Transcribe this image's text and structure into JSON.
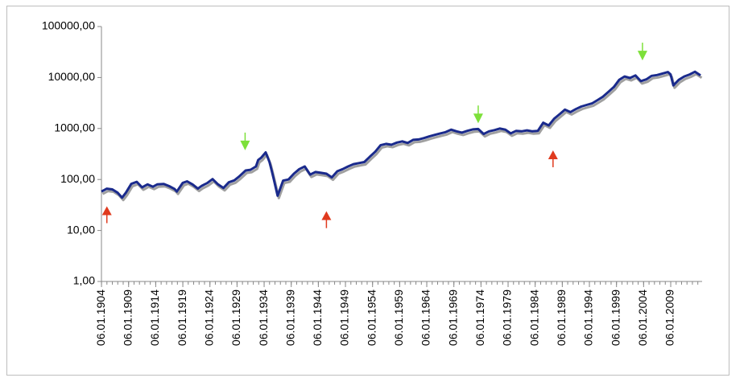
{
  "chart_data": {
    "type": "line",
    "title": "",
    "xlabel": "",
    "ylabel": "",
    "y_scale": "log",
    "ylim": [
      1,
      100000
    ],
    "xlim": [
      "06.01.1904",
      "2014"
    ],
    "grid": false,
    "y_tick_labels": [
      "1,00",
      "10,00",
      "100,00",
      "1000,00",
      "10000,00",
      "100000,00"
    ],
    "x_tick_labels": [
      "06.01.1904",
      "06.01.1909",
      "06.01.1914",
      "06.01.1919",
      "06.01.1924",
      "06.01.1929",
      "06.01.1934",
      "06.01.1939",
      "06.01.1944",
      "06.01.1949",
      "06.01.1954",
      "06.01.1959",
      "06.01.1964",
      "06.01.1969",
      "06.01.1974",
      "06.01.1979",
      "06.01.1984",
      "06.01.1989",
      "06.01.1994",
      "06.01.1999",
      "06.01.2004",
      "06.01.2009"
    ],
    "line_color": "#1a2a8c",
    "shadow_color": "#a0a0a0",
    "series": [
      {
        "x": [
          1904.0,
          1905.0,
          1906.0,
          1907.0,
          1907.8,
          1908.5,
          1909.5,
          1910.5,
          1911.5,
          1912.5,
          1913.5,
          1914.3,
          1915.5,
          1916.5,
          1917.5,
          1917.9,
          1919.0,
          1919.8,
          1920.8,
          1921.8,
          1922.5,
          1923.5,
          1924.5,
          1925.5,
          1926.5,
          1927.5,
          1928.5,
          1929.3,
          1929.9,
          1930.6,
          1931.5,
          1932.5,
          1932.9,
          1933.5,
          1934.3,
          1935.0,
          1935.4,
          1935.8,
          1936.5,
          1937.5,
          1938.5,
          1939.5,
          1940.5,
          1941.5,
          1942.5,
          1943.5,
          1944.5,
          1945.5,
          1946.5,
          1947.5,
          1948.5,
          1949.5,
          1950.5,
          1951.5,
          1952.5,
          1953.5,
          1954.5,
          1955.5,
          1956.5,
          1957.5,
          1958.5,
          1959.5,
          1960.5,
          1961.5,
          1962.5,
          1963.5,
          1964.5,
          1965.5,
          1966.5,
          1967.5,
          1968.5,
          1969.5,
          1970.5,
          1971.5,
          1972.5,
          1973.5,
          1974.5,
          1975.5,
          1976.5,
          1977.5,
          1978.5,
          1979.5,
          1980.5,
          1981.5,
          1982.5,
          1983.5,
          1984.5,
          1985.5,
          1986.5,
          1987.5,
          1988.5,
          1989.5,
          1990.5,
          1991.5,
          1992.5,
          1993.5,
          1994.5,
          1995.5,
          1996.5,
          1997.5,
          1998.5,
          1999.5,
          2000.5,
          2001.5,
          2002.5,
          2003.5,
          2004.5,
          2005.5,
          2006.5,
          2007.5,
          2008.5,
          2009.0,
          2009.5,
          2010.5,
          2011.5,
          2012.5,
          2013.5,
          2014.5
        ],
        "y": [
          58,
          66,
          64,
          55,
          44,
          55,
          82,
          90,
          70,
          80,
          72,
          80,
          82,
          74,
          65,
          58,
          86,
          92,
          80,
          66,
          75,
          85,
          102,
          80,
          68,
          88,
          96,
          112,
          128,
          150,
          155,
          180,
          240,
          270,
          340,
          220,
          150,
          100,
          48,
          95,
          100,
          130,
          160,
          180,
          125,
          140,
          135,
          130,
          110,
          145,
          160,
          180,
          200,
          210,
          220,
          280,
          350,
          470,
          500,
          480,
          530,
          560,
          520,
          600,
          610,
          650,
          700,
          750,
          800,
          850,
          950,
          880,
          830,
          900,
          960,
          980,
          780,
          880,
          930,
          1000,
          950,
          800,
          900,
          880,
          920,
          880,
          900,
          1300,
          1150,
          1550,
          1900,
          2350,
          2100,
          2400,
          2700,
          2900,
          3100,
          3600,
          4200,
          5200,
          6500,
          9000,
          10500,
          9800,
          11000,
          8500,
          9200,
          10800,
          11200,
          12000,
          12800,
          11500,
          7000,
          9000,
          10500,
          11500,
          13000,
          11000
        ]
      }
    ],
    "annotations": [
      {
        "type": "up-arrow",
        "color": "#e03a1e",
        "x": 1905.0,
        "y": 20
      },
      {
        "type": "down-arrow",
        "color": "#7de03a",
        "x": 1930.5,
        "y": 500
      },
      {
        "type": "up-arrow",
        "color": "#e03a1e",
        "x": 1945.5,
        "y": 16
      },
      {
        "type": "down-arrow",
        "color": "#7de03a",
        "x": 1973.5,
        "y": 1700
      },
      {
        "type": "up-arrow",
        "color": "#e03a1e",
        "x": 1987.3,
        "y": 250
      },
      {
        "type": "down-arrow",
        "color": "#7de03a",
        "x": 2003.8,
        "y": 29000
      }
    ]
  }
}
